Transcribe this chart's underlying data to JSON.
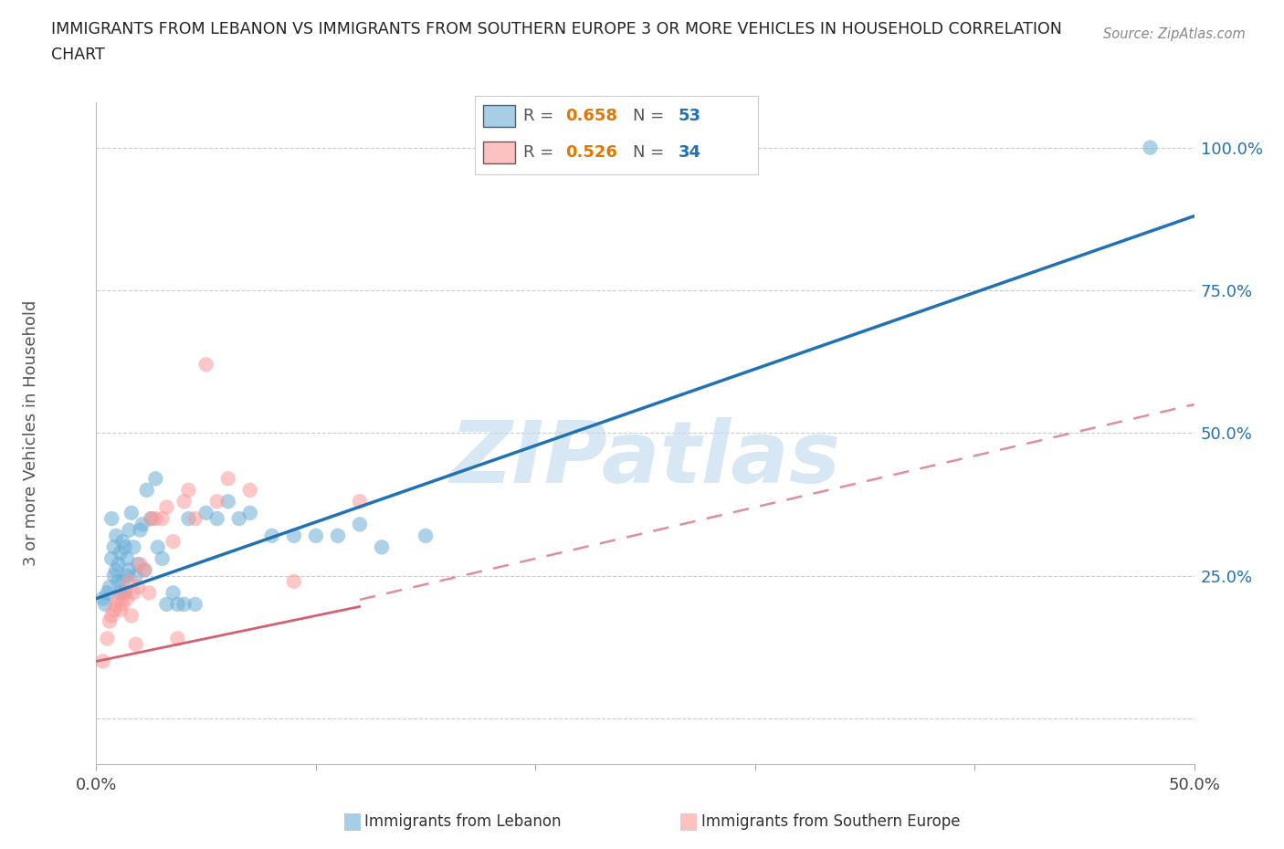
{
  "title_line1": "IMMIGRANTS FROM LEBANON VS IMMIGRANTS FROM SOUTHERN EUROPE 3 OR MORE VEHICLES IN HOUSEHOLD CORRELATION",
  "title_line2": "CHART",
  "source": "Source: ZipAtlas.com",
  "xlabel_lebanon": "Immigrants from Lebanon",
  "xlabel_southern": "Immigrants from Southern Europe",
  "ylabel": "3 or more Vehicles in Household",
  "xlim": [
    0.0,
    0.5
  ],
  "ylim": [
    -0.08,
    1.08
  ],
  "yticks": [
    0.0,
    0.25,
    0.5,
    0.75,
    1.0
  ],
  "ytick_labels": [
    "",
    "25.0%",
    "50.0%",
    "75.0%",
    "100.0%"
  ],
  "xticks": [
    0.0,
    0.1,
    0.2,
    0.3,
    0.4,
    0.5
  ],
  "xtick_labels": [
    "0.0%",
    "",
    "",
    "",
    "",
    "50.0%"
  ],
  "lebanon_R": 0.658,
  "lebanon_N": 53,
  "southern_R": 0.526,
  "southern_N": 34,
  "lebanon_color": "#6baed6",
  "southern_color": "#fb9a99",
  "trendline_lebanon_color": "#2171b5",
  "trendline_southern_color": "#d46070",
  "watermark_text": "ZIPatlas",
  "watermark_color": "#c8ddf0",
  "lebanon_scatter_x": [
    0.003,
    0.004,
    0.005,
    0.006,
    0.007,
    0.007,
    0.008,
    0.008,
    0.009,
    0.009,
    0.01,
    0.01,
    0.011,
    0.011,
    0.012,
    0.012,
    0.013,
    0.013,
    0.014,
    0.014,
    0.015,
    0.015,
    0.016,
    0.017,
    0.018,
    0.019,
    0.02,
    0.021,
    0.022,
    0.023,
    0.025,
    0.027,
    0.028,
    0.03,
    0.032,
    0.035,
    0.037,
    0.04,
    0.042,
    0.045,
    0.05,
    0.055,
    0.06,
    0.065,
    0.07,
    0.08,
    0.09,
    0.1,
    0.11,
    0.12,
    0.13,
    0.15,
    0.48
  ],
  "lebanon_scatter_y": [
    0.21,
    0.2,
    0.22,
    0.23,
    0.35,
    0.28,
    0.3,
    0.25,
    0.26,
    0.32,
    0.24,
    0.27,
    0.22,
    0.29,
    0.24,
    0.31,
    0.22,
    0.3,
    0.25,
    0.28,
    0.26,
    0.33,
    0.36,
    0.3,
    0.25,
    0.27,
    0.33,
    0.34,
    0.26,
    0.4,
    0.35,
    0.42,
    0.3,
    0.28,
    0.2,
    0.22,
    0.2,
    0.2,
    0.35,
    0.2,
    0.36,
    0.35,
    0.38,
    0.35,
    0.36,
    0.32,
    0.32,
    0.32,
    0.32,
    0.34,
    0.3,
    0.32,
    1.0
  ],
  "southern_scatter_x": [
    0.003,
    0.005,
    0.006,
    0.007,
    0.008,
    0.009,
    0.01,
    0.011,
    0.012,
    0.013,
    0.014,
    0.015,
    0.016,
    0.017,
    0.018,
    0.019,
    0.02,
    0.022,
    0.024,
    0.025,
    0.027,
    0.03,
    0.032,
    0.035,
    0.037,
    0.04,
    0.042,
    0.045,
    0.05,
    0.055,
    0.06,
    0.07,
    0.09,
    0.12
  ],
  "southern_scatter_y": [
    0.1,
    0.14,
    0.17,
    0.18,
    0.19,
    0.2,
    0.21,
    0.19,
    0.2,
    0.22,
    0.21,
    0.24,
    0.18,
    0.22,
    0.13,
    0.23,
    0.27,
    0.26,
    0.22,
    0.35,
    0.35,
    0.35,
    0.37,
    0.31,
    0.14,
    0.38,
    0.4,
    0.35,
    0.62,
    0.38,
    0.42,
    0.4,
    0.24,
    0.38
  ],
  "trendline_leb_x0": 0.0,
  "trendline_leb_y0": 0.21,
  "trendline_leb_x1": 0.5,
  "trendline_leb_y1": 0.88,
  "trendline_sou_x0": 0.0,
  "trendline_sou_y0": 0.1,
  "trendline_sou_x1": 0.5,
  "trendline_sou_y1": 0.5,
  "trendline_sou_dash_x0": 0.0,
  "trendline_sou_dash_y0": 0.1,
  "trendline_sou_dash_x1": 0.5,
  "trendline_sou_dash_y1": 0.55
}
